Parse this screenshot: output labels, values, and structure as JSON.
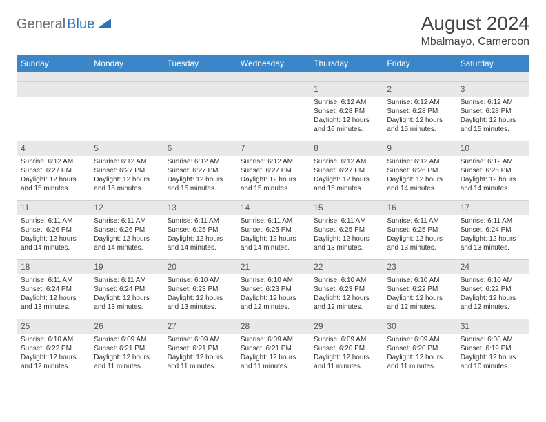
{
  "logo": {
    "part1": "General",
    "part2": "Blue"
  },
  "title": "August 2024",
  "location": "Mbalmayo, Cameroon",
  "colors": {
    "header_bg": "#3a86c8",
    "header_fg": "#ffffff",
    "daynum_bg": "#e8e8e8",
    "text": "#333333",
    "logo_gray": "#6b6b6b",
    "logo_blue": "#2d72b5"
  },
  "weekdays": [
    "Sunday",
    "Monday",
    "Tuesday",
    "Wednesday",
    "Thursday",
    "Friday",
    "Saturday"
  ],
  "weeks": [
    [
      {
        "n": "",
        "sr": "",
        "ss": "",
        "dl": ""
      },
      {
        "n": "",
        "sr": "",
        "ss": "",
        "dl": ""
      },
      {
        "n": "",
        "sr": "",
        "ss": "",
        "dl": ""
      },
      {
        "n": "",
        "sr": "",
        "ss": "",
        "dl": ""
      },
      {
        "n": "1",
        "sr": "Sunrise: 6:12 AM",
        "ss": "Sunset: 6:28 PM",
        "dl": "Daylight: 12 hours and 16 minutes."
      },
      {
        "n": "2",
        "sr": "Sunrise: 6:12 AM",
        "ss": "Sunset: 6:28 PM",
        "dl": "Daylight: 12 hours and 15 minutes."
      },
      {
        "n": "3",
        "sr": "Sunrise: 6:12 AM",
        "ss": "Sunset: 6:28 PM",
        "dl": "Daylight: 12 hours and 15 minutes."
      }
    ],
    [
      {
        "n": "4",
        "sr": "Sunrise: 6:12 AM",
        "ss": "Sunset: 6:27 PM",
        "dl": "Daylight: 12 hours and 15 minutes."
      },
      {
        "n": "5",
        "sr": "Sunrise: 6:12 AM",
        "ss": "Sunset: 6:27 PM",
        "dl": "Daylight: 12 hours and 15 minutes."
      },
      {
        "n": "6",
        "sr": "Sunrise: 6:12 AM",
        "ss": "Sunset: 6:27 PM",
        "dl": "Daylight: 12 hours and 15 minutes."
      },
      {
        "n": "7",
        "sr": "Sunrise: 6:12 AM",
        "ss": "Sunset: 6:27 PM",
        "dl": "Daylight: 12 hours and 15 minutes."
      },
      {
        "n": "8",
        "sr": "Sunrise: 6:12 AM",
        "ss": "Sunset: 6:27 PM",
        "dl": "Daylight: 12 hours and 15 minutes."
      },
      {
        "n": "9",
        "sr": "Sunrise: 6:12 AM",
        "ss": "Sunset: 6:26 PM",
        "dl": "Daylight: 12 hours and 14 minutes."
      },
      {
        "n": "10",
        "sr": "Sunrise: 6:12 AM",
        "ss": "Sunset: 6:26 PM",
        "dl": "Daylight: 12 hours and 14 minutes."
      }
    ],
    [
      {
        "n": "11",
        "sr": "Sunrise: 6:11 AM",
        "ss": "Sunset: 6:26 PM",
        "dl": "Daylight: 12 hours and 14 minutes."
      },
      {
        "n": "12",
        "sr": "Sunrise: 6:11 AM",
        "ss": "Sunset: 6:26 PM",
        "dl": "Daylight: 12 hours and 14 minutes."
      },
      {
        "n": "13",
        "sr": "Sunrise: 6:11 AM",
        "ss": "Sunset: 6:25 PM",
        "dl": "Daylight: 12 hours and 14 minutes."
      },
      {
        "n": "14",
        "sr": "Sunrise: 6:11 AM",
        "ss": "Sunset: 6:25 PM",
        "dl": "Daylight: 12 hours and 14 minutes."
      },
      {
        "n": "15",
        "sr": "Sunrise: 6:11 AM",
        "ss": "Sunset: 6:25 PM",
        "dl": "Daylight: 12 hours and 13 minutes."
      },
      {
        "n": "16",
        "sr": "Sunrise: 6:11 AM",
        "ss": "Sunset: 6:25 PM",
        "dl": "Daylight: 12 hours and 13 minutes."
      },
      {
        "n": "17",
        "sr": "Sunrise: 6:11 AM",
        "ss": "Sunset: 6:24 PM",
        "dl": "Daylight: 12 hours and 13 minutes."
      }
    ],
    [
      {
        "n": "18",
        "sr": "Sunrise: 6:11 AM",
        "ss": "Sunset: 6:24 PM",
        "dl": "Daylight: 12 hours and 13 minutes."
      },
      {
        "n": "19",
        "sr": "Sunrise: 6:11 AM",
        "ss": "Sunset: 6:24 PM",
        "dl": "Daylight: 12 hours and 13 minutes."
      },
      {
        "n": "20",
        "sr": "Sunrise: 6:10 AM",
        "ss": "Sunset: 6:23 PM",
        "dl": "Daylight: 12 hours and 13 minutes."
      },
      {
        "n": "21",
        "sr": "Sunrise: 6:10 AM",
        "ss": "Sunset: 6:23 PM",
        "dl": "Daylight: 12 hours and 12 minutes."
      },
      {
        "n": "22",
        "sr": "Sunrise: 6:10 AM",
        "ss": "Sunset: 6:23 PM",
        "dl": "Daylight: 12 hours and 12 minutes."
      },
      {
        "n": "23",
        "sr": "Sunrise: 6:10 AM",
        "ss": "Sunset: 6:22 PM",
        "dl": "Daylight: 12 hours and 12 minutes."
      },
      {
        "n": "24",
        "sr": "Sunrise: 6:10 AM",
        "ss": "Sunset: 6:22 PM",
        "dl": "Daylight: 12 hours and 12 minutes."
      }
    ],
    [
      {
        "n": "25",
        "sr": "Sunrise: 6:10 AM",
        "ss": "Sunset: 6:22 PM",
        "dl": "Daylight: 12 hours and 12 minutes."
      },
      {
        "n": "26",
        "sr": "Sunrise: 6:09 AM",
        "ss": "Sunset: 6:21 PM",
        "dl": "Daylight: 12 hours and 11 minutes."
      },
      {
        "n": "27",
        "sr": "Sunrise: 6:09 AM",
        "ss": "Sunset: 6:21 PM",
        "dl": "Daylight: 12 hours and 11 minutes."
      },
      {
        "n": "28",
        "sr": "Sunrise: 6:09 AM",
        "ss": "Sunset: 6:21 PM",
        "dl": "Daylight: 12 hours and 11 minutes."
      },
      {
        "n": "29",
        "sr": "Sunrise: 6:09 AM",
        "ss": "Sunset: 6:20 PM",
        "dl": "Daylight: 12 hours and 11 minutes."
      },
      {
        "n": "30",
        "sr": "Sunrise: 6:09 AM",
        "ss": "Sunset: 6:20 PM",
        "dl": "Daylight: 12 hours and 11 minutes."
      },
      {
        "n": "31",
        "sr": "Sunrise: 6:08 AM",
        "ss": "Sunset: 6:19 PM",
        "dl": "Daylight: 12 hours and 10 minutes."
      }
    ]
  ]
}
